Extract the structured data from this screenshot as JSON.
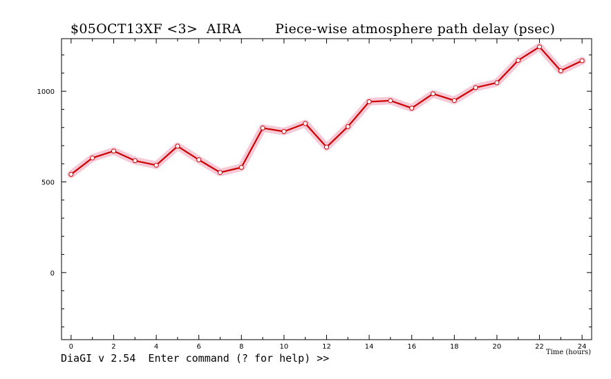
{
  "header": {
    "left_title": "$05OCT13XF <3>  AIRA",
    "right_title": "Piece-wise atmosphere path delay (psec)"
  },
  "status_line": "DiaGI v 2.54  Enter command (? for help) >>",
  "chart_data": {
    "type": "line",
    "title": "Piece-wise atmosphere path delay (psec)",
    "xlabel": "Time (hours)",
    "ylabel": "",
    "xlim": [
      -0.45,
      24.45
    ],
    "ylim": [
      -370,
      1290
    ],
    "x_ticks": [
      0,
      2,
      4,
      6,
      8,
      10,
      12,
      14,
      16,
      18,
      20,
      22,
      24
    ],
    "y_ticks": [
      0,
      500,
      1000
    ],
    "grid": false,
    "colors": {
      "line": "#cc0000",
      "band": "#f5c0d0",
      "marker_fill": "#ffffff"
    },
    "series": [
      {
        "x": [
          0,
          1,
          2,
          3,
          4,
          5,
          6,
          7,
          8,
          9,
          10,
          11,
          12,
          13,
          14,
          15,
          16,
          17,
          18,
          19,
          20,
          21,
          22,
          23,
          24
        ],
        "values": [
          542,
          632,
          670,
          617,
          592,
          697,
          622,
          552,
          580,
          797,
          778,
          822,
          692,
          805,
          942,
          948,
          907,
          986,
          949,
          1020,
          1047,
          1170,
          1245,
          1113,
          1168
        ],
        "error": 18
      }
    ]
  }
}
